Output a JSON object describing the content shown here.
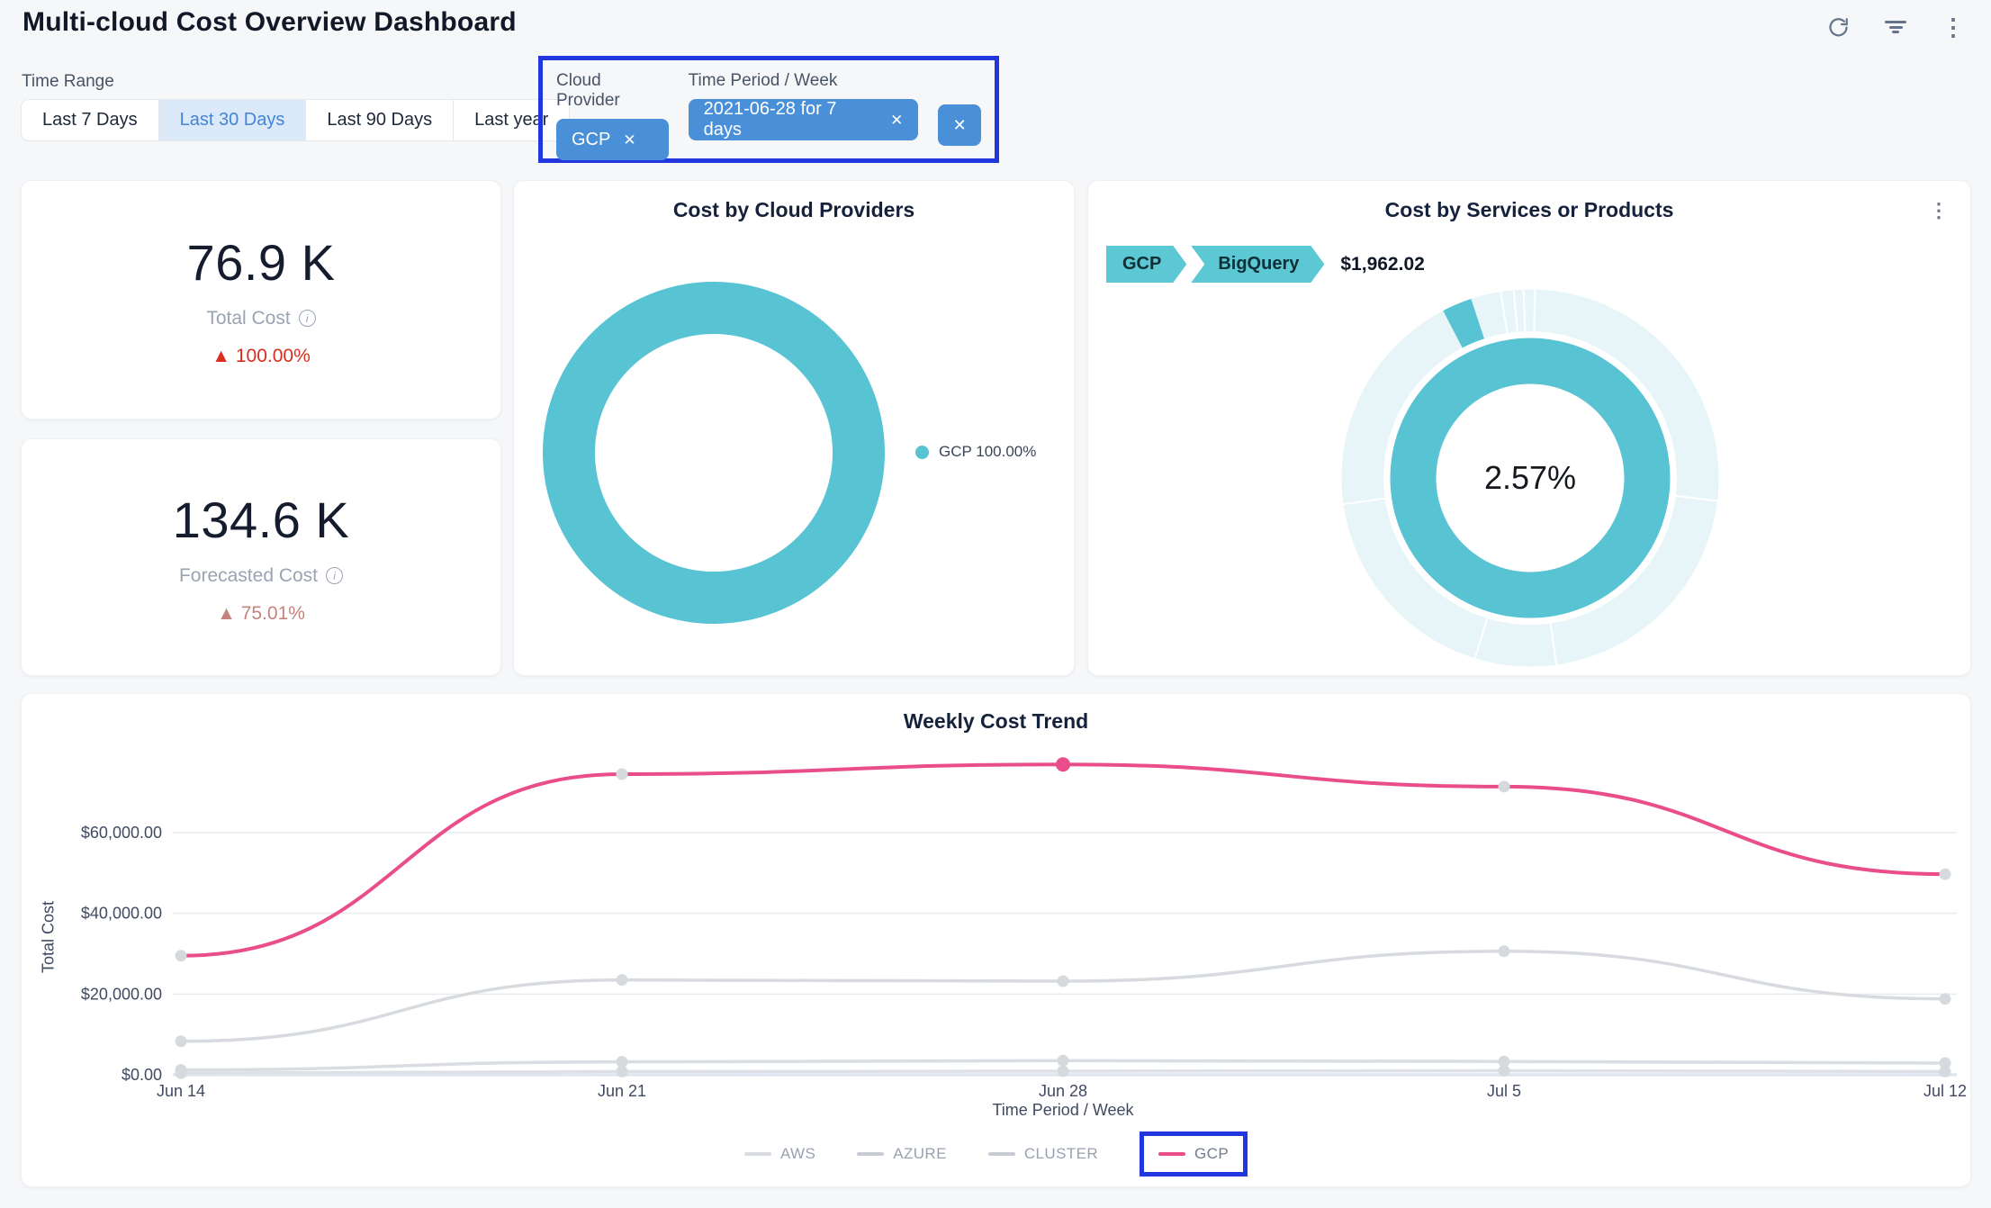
{
  "header": {
    "title": "Multi-cloud Cost Overview Dashboard",
    "icons": {
      "refresh": "refresh",
      "filter": "filter-lines",
      "more": "⋮"
    }
  },
  "glyphs": {
    "close": "✕",
    "up_triangle": "▲",
    "info": "i"
  },
  "annotation_color": "#2236e0",
  "controls": {
    "time_range_label": "Time Range",
    "time_range_options": [
      {
        "label": "Last 7 Days",
        "active": false
      },
      {
        "label": "Last 30 Days",
        "active": true
      },
      {
        "label": "Last 90 Days",
        "active": false
      },
      {
        "label": "Last year",
        "active": false
      }
    ],
    "filters": [
      {
        "label": "Cloud Provider",
        "value": "GCP"
      },
      {
        "label": "Time Period / Week",
        "value": "2021-06-28 for 7 days"
      }
    ],
    "chip_color": "#4a90d9"
  },
  "kpis": [
    {
      "value": "76.9 K",
      "label": "Total Cost",
      "delta": "100.00%",
      "delta_color": "#d92d20"
    },
    {
      "value": "134.6 K",
      "label": "Forecasted Cost",
      "delta": "75.01%",
      "delta_color": "#c4837e"
    }
  ],
  "providers_card": {
    "title": "Cost by Cloud Providers",
    "legend_label": "GCP 100.00%",
    "color": "#58c3d3"
  },
  "services_card": {
    "title": "Cost by Services or Products",
    "breadcrumb": [
      "GCP",
      "BigQuery"
    ],
    "amount": "$1,962.02",
    "center_label": "2.57%",
    "highlight_pct": 2.57,
    "highlight_start_deg": 332.5,
    "ring_color": "#58c3d3",
    "ring_bg": "#e7f5f8"
  },
  "trend_card": {
    "ylabel": "Total Cost",
    "xlabel": "Time Period / Week"
  },
  "chart_data": [
    {
      "type": "pie",
      "title": "Cost by Cloud Providers",
      "labels": [
        "GCP"
      ],
      "values": [
        100.0
      ],
      "unit": "%",
      "colors": [
        "#58c3d3"
      ],
      "legend_position": "right",
      "style": "donut"
    },
    {
      "type": "pie",
      "title": "Cost by Services or Products",
      "style": "sunburst-donut",
      "inner_ring": {
        "labels": [
          "GCP"
        ],
        "values": [
          100.0
        ],
        "color": "#58c3d3"
      },
      "outer_ring": {
        "highlight_label": "BigQuery",
        "highlight_pct": 2.57,
        "highlight_amount": "$1,962.02",
        "rest_color": "#e7f5f8"
      },
      "center_label": "2.57%"
    },
    {
      "type": "line",
      "title": "Weekly Cost Trend",
      "xlabel": "Time Period / Week",
      "ylabel": "Total Cost",
      "x": [
        "Jun 14",
        "Jun 21",
        "Jun 28",
        "Jul 5",
        "Jul 12"
      ],
      "ylim": [
        0,
        80000
      ],
      "grid": true,
      "legend_position": "bottom",
      "yticks": [
        {
          "v": 0,
          "label": "$0.00"
        },
        {
          "v": 20000,
          "label": "$20,000.00"
        },
        {
          "v": 40000,
          "label": "$40,000.00"
        },
        {
          "v": 60000,
          "label": "$60,000.00"
        }
      ],
      "series": [
        {
          "name": "AWS",
          "values": [
            1200,
            3200,
            3500,
            3300,
            2900
          ],
          "color": "#d9dde2",
          "active": false
        },
        {
          "name": "AZURE",
          "values": [
            400,
            800,
            900,
            1000,
            800
          ],
          "color": "#dde0e5",
          "active": false
        },
        {
          "name": "CLUSTER",
          "values": [
            8300,
            23500,
            23200,
            30600,
            18800
          ],
          "color": "#d7dadf",
          "active": false
        },
        {
          "name": "GCP",
          "values": [
            29500,
            74500,
            76900,
            71400,
            49700
          ],
          "color": "#e94d8a",
          "active": true,
          "highlight_index": 2
        }
      ]
    }
  ]
}
